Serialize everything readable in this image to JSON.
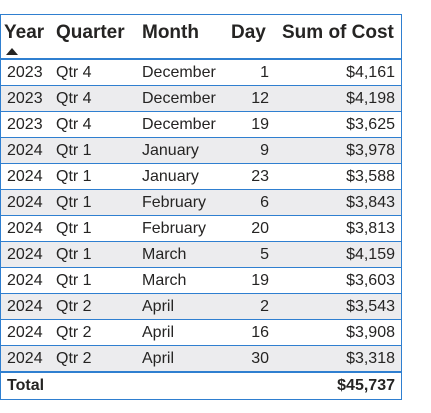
{
  "table": {
    "columns": [
      "Year",
      "Quarter",
      "Month",
      "Day",
      "Sum of Cost"
    ],
    "rows": [
      {
        "year": "2023",
        "quarter": "Qtr 4",
        "month": "December",
        "day": "1",
        "cost": "$4,161"
      },
      {
        "year": "2023",
        "quarter": "Qtr 4",
        "month": "December",
        "day": "12",
        "cost": "$4,198"
      },
      {
        "year": "2023",
        "quarter": "Qtr 4",
        "month": "December",
        "day": "19",
        "cost": "$3,625"
      },
      {
        "year": "2024",
        "quarter": "Qtr 1",
        "month": "January",
        "day": "9",
        "cost": "$3,978"
      },
      {
        "year": "2024",
        "quarter": "Qtr 1",
        "month": "January",
        "day": "23",
        "cost": "$3,588"
      },
      {
        "year": "2024",
        "quarter": "Qtr 1",
        "month": "February",
        "day": "6",
        "cost": "$3,843"
      },
      {
        "year": "2024",
        "quarter": "Qtr 1",
        "month": "February",
        "day": "20",
        "cost": "$3,813"
      },
      {
        "year": "2024",
        "quarter": "Qtr 1",
        "month": "March",
        "day": "5",
        "cost": "$4,159"
      },
      {
        "year": "2024",
        "quarter": "Qtr 1",
        "month": "March",
        "day": "19",
        "cost": "$3,603"
      },
      {
        "year": "2024",
        "quarter": "Qtr 2",
        "month": "April",
        "day": "2",
        "cost": "$3,543"
      },
      {
        "year": "2024",
        "quarter": "Qtr 2",
        "month": "April",
        "day": "16",
        "cost": "$3,908"
      },
      {
        "year": "2024",
        "quarter": "Qtr 2",
        "month": "April",
        "day": "30",
        "cost": "$3,318"
      }
    ],
    "total": {
      "label": "Total",
      "cost": "$45,737"
    },
    "sort": {
      "column": "Year",
      "direction": "ascending",
      "icon": "sort-ascending-icon"
    }
  },
  "colors": {
    "border": "#2f7fd0",
    "alt_row": "#ececee",
    "text": "#252423"
  }
}
